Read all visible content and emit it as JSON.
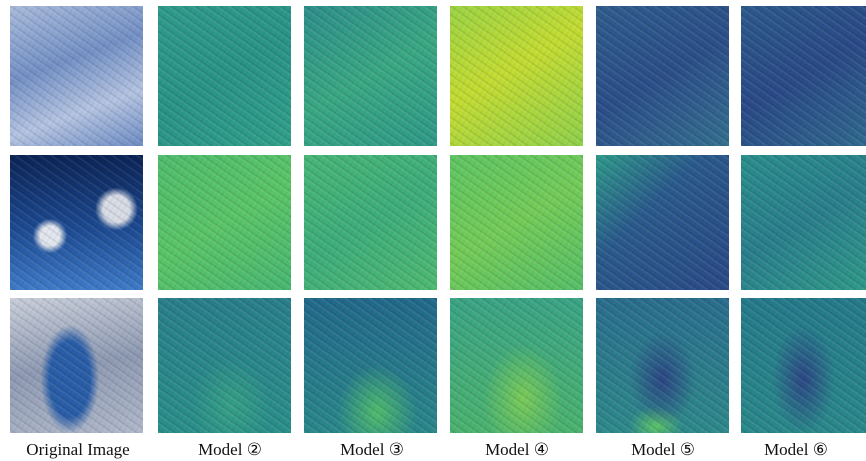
{
  "figure": {
    "columns": [
      {
        "label": "Original Image"
      },
      {
        "label": "Model ②"
      },
      {
        "label": "Model ③"
      },
      {
        "label": "Model ④"
      },
      {
        "label": "Model ⑤"
      },
      {
        "label": "Model ⑥"
      }
    ]
  }
}
